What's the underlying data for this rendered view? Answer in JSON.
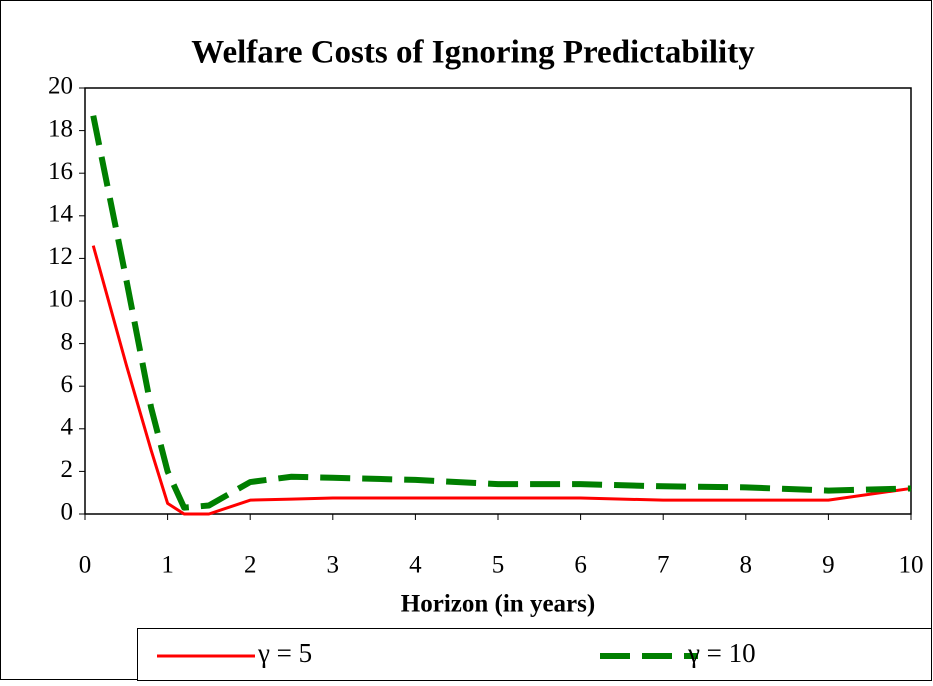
{
  "chart_data": {
    "type": "line",
    "title": "Welfare Costs of Ignoring Predictability",
    "x_label": "Horizon (in years)",
    "x": [
      0.1,
      0.5,
      0.8,
      1,
      1.2,
      1.5,
      2,
      2.5,
      3,
      4,
      5,
      6,
      7,
      8,
      9,
      10
    ],
    "series": [
      {
        "name": "γ = 5",
        "color": "#ff0000",
        "style": "solid",
        "values": [
          12.6,
          7,
          3,
          0.5,
          0,
          0,
          0.65,
          0.7,
          0.75,
          0.75,
          0.75,
          0.75,
          0.65,
          0.65,
          0.65,
          1.2
        ]
      },
      {
        "name": "γ = 10",
        "color": "#007f00",
        "style": "dashed",
        "values": [
          18.7,
          11,
          5,
          2,
          0.3,
          0.4,
          1.5,
          1.75,
          1.7,
          1.6,
          1.4,
          1.4,
          1.3,
          1.25,
          1.1,
          1.2
        ]
      }
    ],
    "xlim": [
      0,
      10
    ],
    "xticks": [
      0,
      1,
      2,
      3,
      4,
      5,
      6,
      7,
      8,
      9,
      10
    ],
    "ylim": [
      0,
      20
    ],
    "yticks": [
      0,
      2,
      4,
      6,
      8,
      10,
      12,
      14,
      16,
      18,
      20
    ],
    "grid": false,
    "legend": "bottom"
  }
}
